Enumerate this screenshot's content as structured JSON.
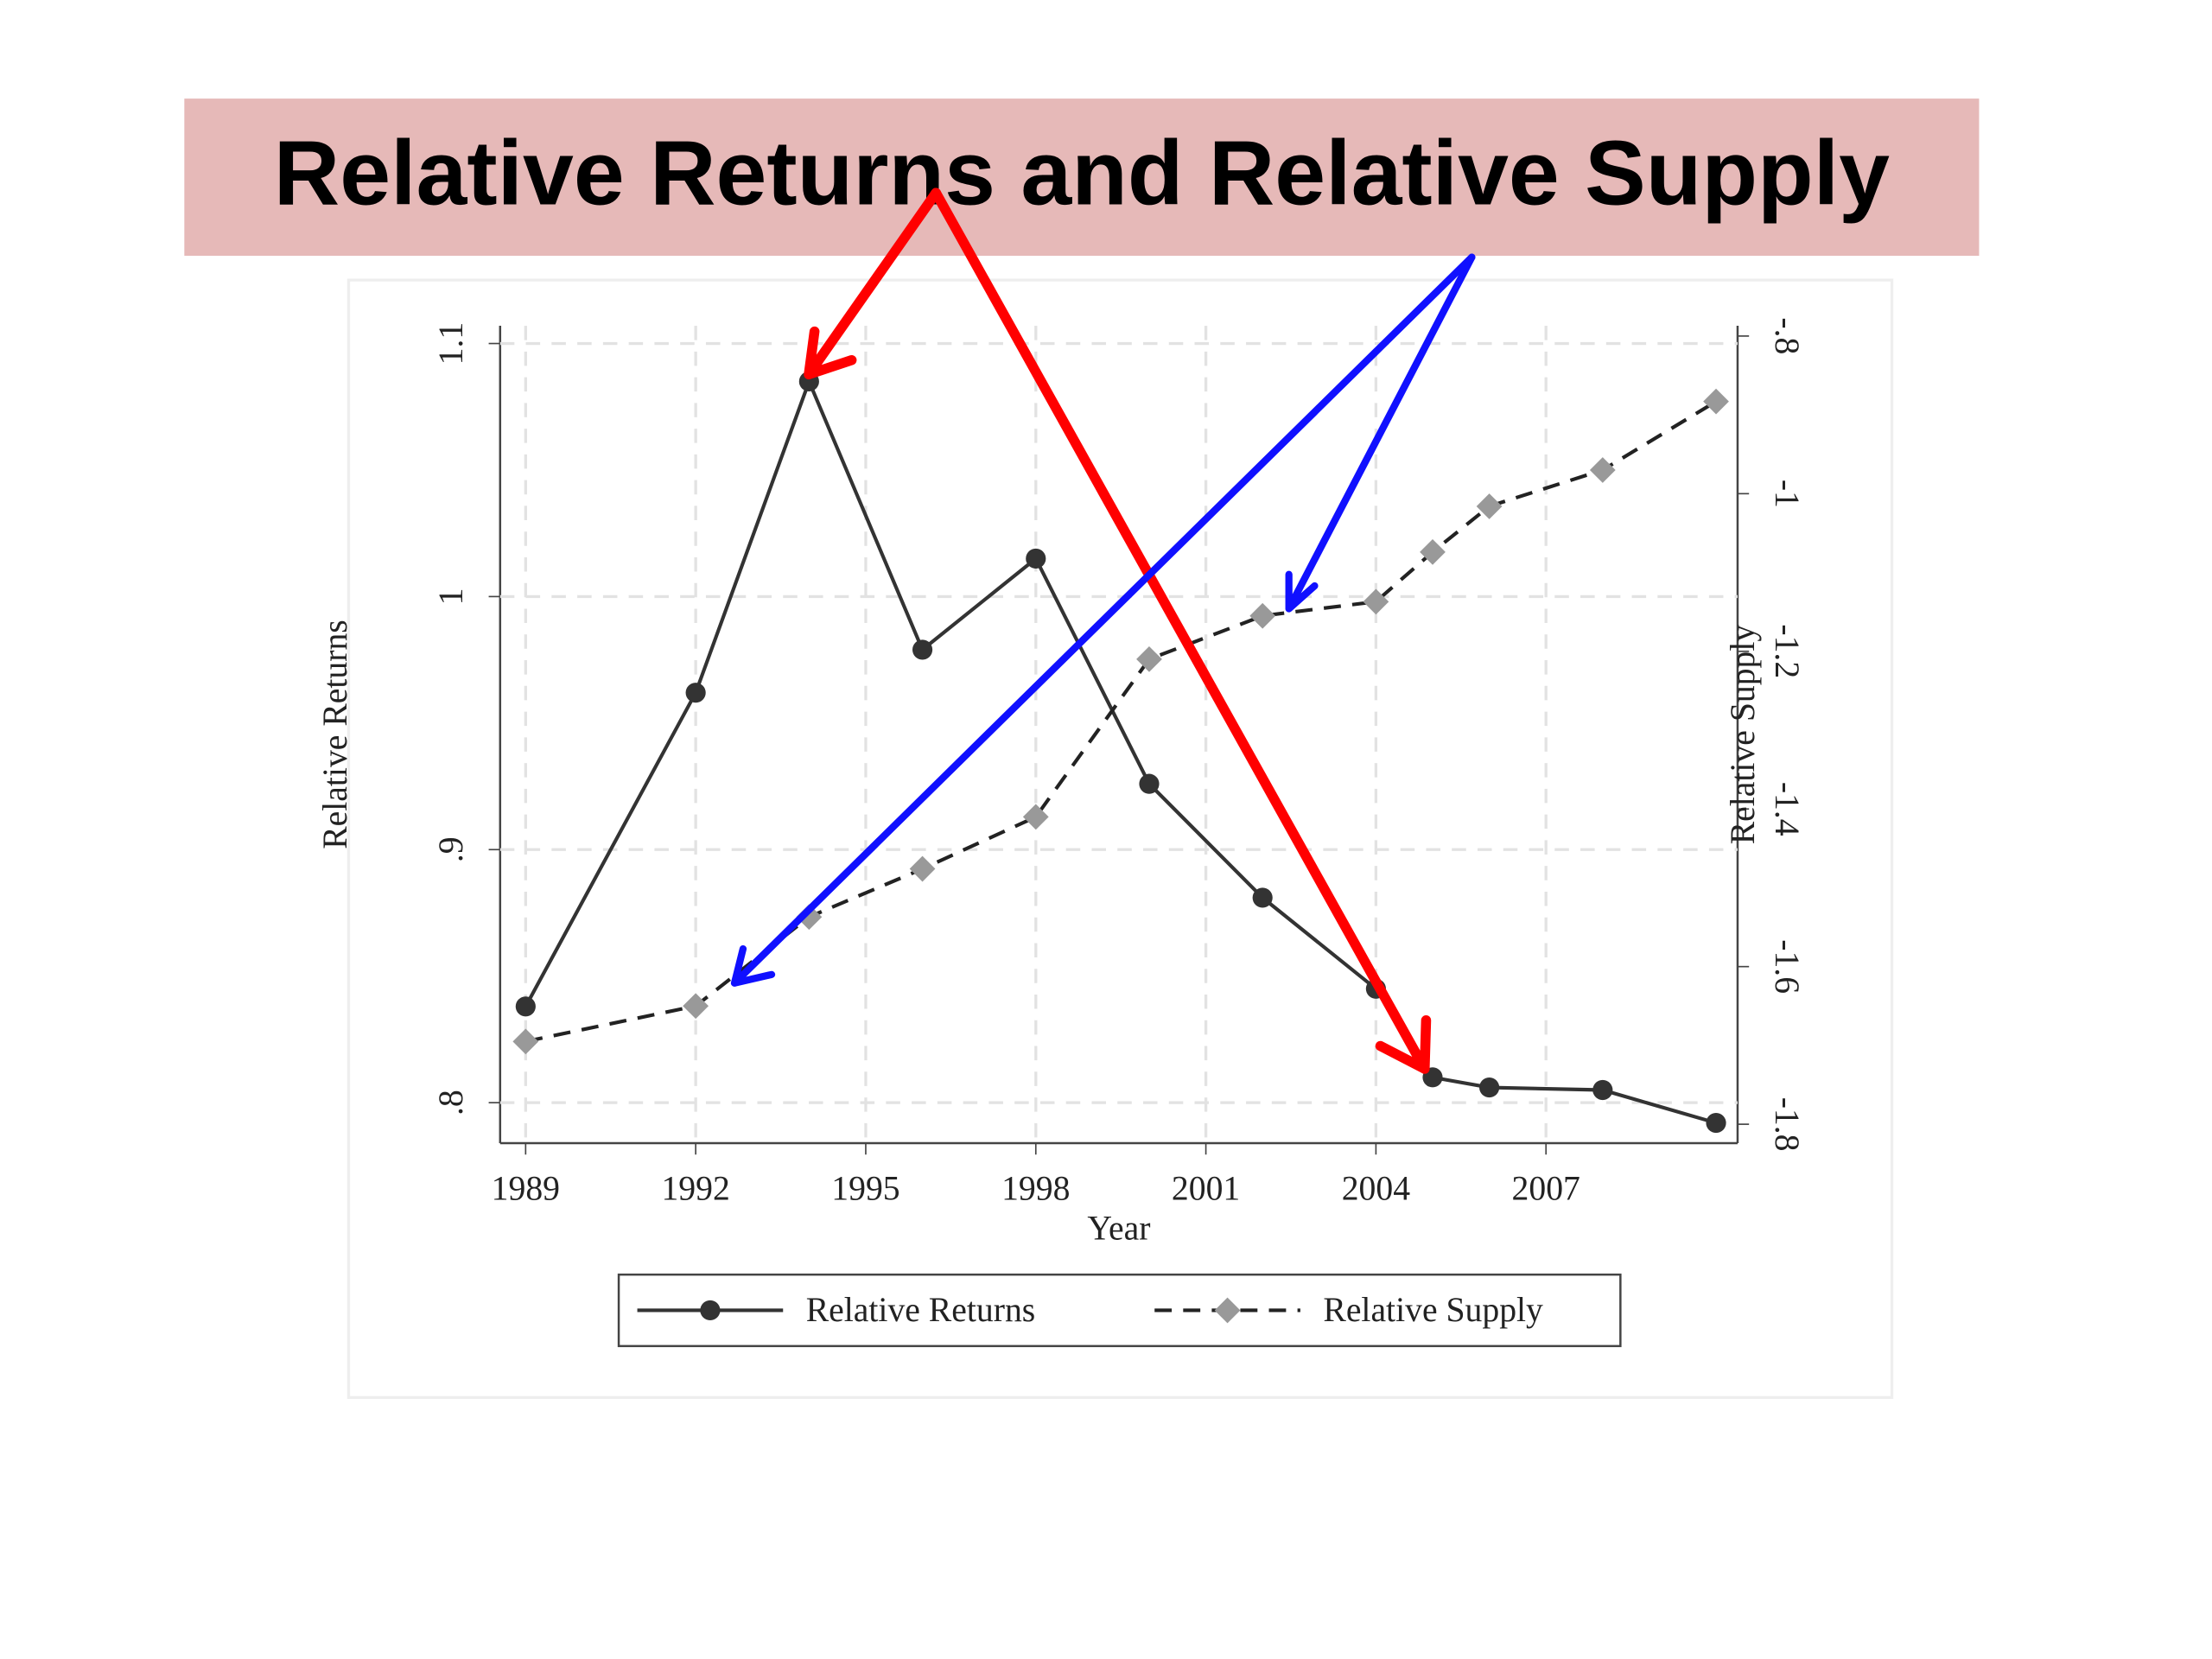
{
  "chart_data": {
    "type": "line",
    "title": "Relative Returns and Relative Supply",
    "x_label": "Year",
    "y_label": "Relative Returns",
    "y2_label": "Relative Supply",
    "x": [
      1989,
      1992,
      1994,
      1996,
      1998,
      2000,
      2002,
      2004,
      2005,
      2006,
      2008,
      2010
    ],
    "series": [
      {
        "name": "Relative Returns",
        "color": "#333333",
        "marker": "circle",
        "dash": false,
        "values": [
          0.838,
          0.962,
          1.085,
          0.979,
          1.015,
          0.926,
          0.881,
          0.845,
          0.81,
          0.806,
          0.805,
          0.792
        ]
      },
      {
        "name": "Relative Supply",
        "color": "#999999",
        "marker": "diamond",
        "dash": true,
        "axis": "y2",
        "values": [
          -1.695,
          -1.65,
          -1.537,
          -1.476,
          -1.41,
          -1.21,
          -1.155,
          -1.137,
          -1.074,
          -1.016,
          -0.97,
          -0.883
        ]
      }
    ],
    "xlim": [
      1988.55,
      2010.38
    ],
    "xticks": [
      1989,
      1992,
      1995,
      1998,
      2001,
      2004,
      2007
    ],
    "ylim": [
      0.784,
      1.107
    ],
    "yticks": [
      {
        "value": 0.8,
        "label": ".8"
      },
      {
        "value": 0.9,
        "label": ".9"
      },
      1,
      1.1
    ],
    "y2lim": [
      -1.824,
      -0.787
    ],
    "y2ticks": [
      -1.8,
      -1.6,
      -1.4,
      -1.2,
      -1,
      {
        "value": -0.8,
        "label": "-.8"
      }
    ],
    "grid": true,
    "legend": "bottom"
  }
}
